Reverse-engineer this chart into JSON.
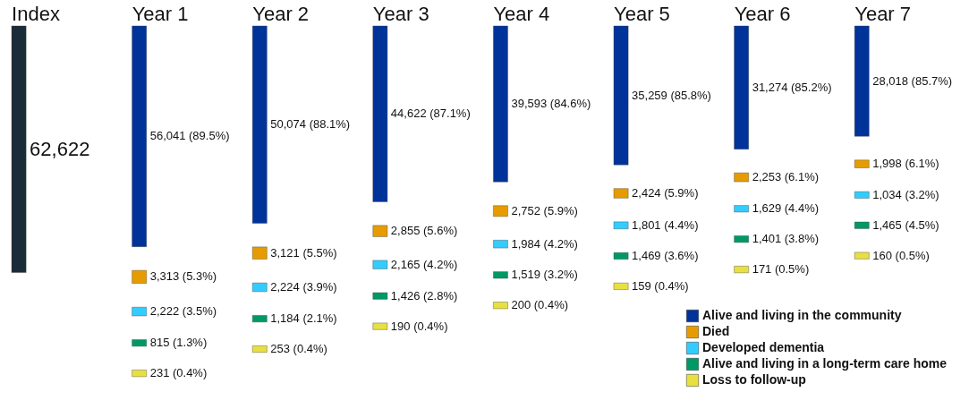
{
  "chart_data": {
    "type": "other",
    "categories": [
      "Index",
      "Year 1",
      "Year 2",
      "Year 3",
      "Year 4",
      "Year 5",
      "Year 6",
      "Year 7"
    ],
    "legend": "bottom right",
    "series": [
      {
        "name": "Alive and living in the community",
        "color": "#00339a",
        "colors": [
          "#1a2b3a",
          "#00339a",
          "#00339a",
          "#00339a",
          "#00339a",
          "#00339a",
          "#00339a",
          "#00339a"
        ],
        "values": [
          62622,
          56041,
          50074,
          44622,
          39593,
          35259,
          31274,
          28018
        ],
        "value_labels": [
          "62,622",
          "56,041 (89.5%)",
          "50,074 (88.1%)",
          "44,622 (87.1%)",
          "39,593 (84.6%)",
          "35,259 (85.8%)",
          "31,274 (85.2%)",
          "28,018 (85.7%)"
        ]
      },
      {
        "name": "Died",
        "color": "#e69c00",
        "values": [
          null,
          3313,
          3121,
          2855,
          2752,
          2424,
          2253,
          1998
        ],
        "value_labels": [
          null,
          "3,313 (5.3%)",
          "3,121 (5.5%)",
          "2,855 (5.6%)",
          "2,752 (5.9%)",
          "2,424 (5.9%)",
          "2,253 (6.1%)",
          "1,998 (6.1%)"
        ]
      },
      {
        "name": "Developed dementia",
        "color": "#33ccff",
        "values": [
          null,
          2222,
          2224,
          2165,
          1984,
          1801,
          1629,
          1034
        ],
        "value_labels": [
          null,
          "2,222 (3.5%)",
          "2,224 (3.9%)",
          "2,165 (4.2%)",
          "1,984 (4.2%)",
          "1,801 (4.4%)",
          "1,629 (4.4%)",
          "1,034 (3.2%)"
        ]
      },
      {
        "name": "Alive and living in a long-term care home",
        "color": "#009966",
        "values": [
          null,
          815,
          1184,
          1426,
          1519,
          1469,
          1401,
          1465
        ],
        "value_labels": [
          null,
          "815 (1.3%)",
          "1,184 (2.1%)",
          "1,426 (2.8%)",
          "1,519 (3.2%)",
          "1,469 (3.6%)",
          "1,401 (3.8%)",
          "1,465 (4.5%)"
        ]
      },
      {
        "name": "Loss to follow-up",
        "color": "#e8e040",
        "values": [
          null,
          231,
          253,
          190,
          200,
          159,
          171,
          160
        ],
        "value_labels": [
          null,
          "231 (0.4%)",
          "253 (0.4%)",
          "190 (0.4%)",
          "200 (0.4%)",
          "159 (0.4%)",
          "171 (0.5%)",
          "160 (0.5%)"
        ]
      }
    ]
  }
}
